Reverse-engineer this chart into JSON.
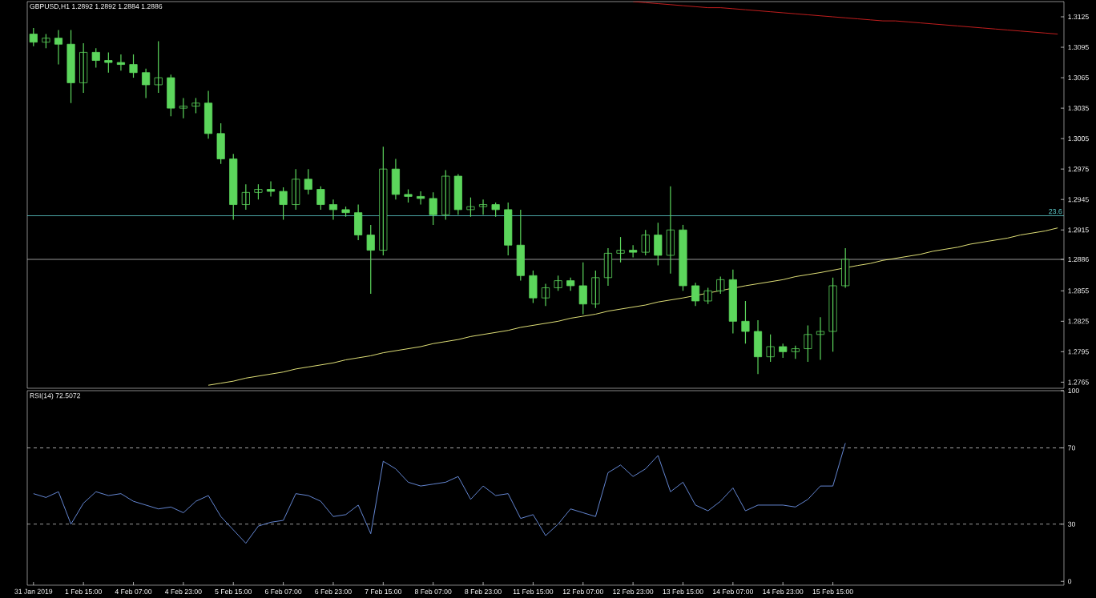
{
  "chart_data": [
    {
      "type": "candlestick",
      "title": "GBPUSD,H1  1.2892 1.2892 1.2884 1.2886",
      "color": "#5cd65c",
      "categories": [
        null,
        null,
        null,
        null,
        null,
        null,
        null,
        null,
        null,
        null,
        null,
        null,
        null,
        null,
        null,
        null,
        null,
        null,
        null,
        null,
        null,
        null,
        null,
        null,
        null,
        null,
        null,
        null,
        null,
        null,
        null,
        null,
        null,
        null,
        null,
        null,
        null,
        null,
        null,
        null,
        null,
        null,
        null,
        null,
        null,
        null,
        null,
        null,
        null,
        null,
        null,
        null,
        null,
        null,
        null,
        null,
        null,
        null,
        null,
        null,
        null,
        null,
        null,
        null,
        null,
        null,
        null,
        null,
        null,
        null,
        null,
        null,
        null,
        null,
        null,
        null,
        null,
        null,
        null,
        null,
        null,
        null,
        null
      ],
      "ohlc": [
        [
          1.3108,
          1.3114,
          1.3096,
          1.31
        ],
        [
          1.31,
          1.3108,
          1.3094,
          1.3104
        ],
        [
          1.3104,
          1.3112,
          1.3078,
          1.3098
        ],
        [
          1.3098,
          1.3112,
          1.304,
          1.306
        ],
        [
          1.306,
          1.3099,
          1.305,
          1.309
        ],
        [
          1.309,
          1.3094,
          1.3075,
          1.3082
        ],
        [
          1.3082,
          1.309,
          1.307,
          1.308
        ],
        [
          1.308,
          1.3088,
          1.3072,
          1.3078
        ],
        [
          1.3078,
          1.3088,
          1.3065,
          1.307
        ],
        [
          1.307,
          1.3074,
          1.3045,
          1.3058
        ],
        [
          1.3058,
          1.3101,
          1.305,
          1.3065
        ],
        [
          1.3065,
          1.3068,
          1.3027,
          1.3035
        ],
        [
          1.3035,
          1.3045,
          1.3025,
          1.3037
        ],
        [
          1.3037,
          1.3045,
          1.303,
          1.304
        ],
        [
          1.304,
          1.3052,
          1.3005,
          1.301
        ],
        [
          1.301,
          1.302,
          1.298,
          1.2985
        ],
        [
          1.2985,
          1.299,
          1.2925,
          1.294
        ],
        [
          1.294,
          1.296,
          1.2935,
          1.2952
        ],
        [
          1.2952,
          1.296,
          1.2945,
          1.2955
        ],
        [
          1.2955,
          1.2963,
          1.2948,
          1.2953
        ],
        [
          1.2953,
          1.2957,
          1.2925,
          1.294
        ],
        [
          1.294,
          1.2975,
          1.2935,
          1.2965
        ],
        [
          1.2965,
          1.2975,
          1.295,
          1.2955
        ],
        [
          1.2955,
          1.2958,
          1.2935,
          1.294
        ],
        [
          1.294,
          1.2945,
          1.2925,
          1.2935
        ],
        [
          1.2935,
          1.2938,
          1.2928,
          1.2932
        ],
        [
          1.2932,
          1.294,
          1.2905,
          1.291
        ],
        [
          1.291,
          1.292,
          1.2852,
          1.2895
        ],
        [
          1.2895,
          1.2997,
          1.289,
          1.2975
        ],
        [
          1.2975,
          1.2985,
          1.2945,
          1.295
        ],
        [
          1.295,
          1.2955,
          1.2942,
          1.2948
        ],
        [
          1.2948,
          1.2953,
          1.294,
          1.2946
        ],
        [
          1.2946,
          1.2952,
          1.292,
          1.293
        ],
        [
          1.293,
          1.2974,
          1.2925,
          1.2968
        ],
        [
          1.2968,
          1.297,
          1.293,
          1.2935
        ],
        [
          1.2935,
          1.2947,
          1.2928,
          1.2938
        ],
        [
          1.2938,
          1.2945,
          1.293,
          1.294
        ],
        [
          1.294,
          1.2942,
          1.2928,
          1.2935
        ],
        [
          1.2935,
          1.2942,
          1.289,
          1.29
        ],
        [
          1.29,
          1.2935,
          1.2865,
          1.287
        ],
        [
          1.287,
          1.2875,
          1.2843,
          1.2848
        ],
        [
          1.2848,
          1.2862,
          1.284,
          1.2858
        ],
        [
          1.2858,
          1.287,
          1.2855,
          1.2865
        ],
        [
          1.2865,
          1.2868,
          1.2855,
          1.286
        ],
        [
          1.286,
          1.2883,
          1.2832,
          1.2842
        ],
        [
          1.2842,
          1.2875,
          1.2838,
          1.2868
        ],
        [
          1.2868,
          1.2897,
          1.286,
          1.2892
        ],
        [
          1.2892,
          1.2908,
          1.2883,
          1.2895
        ],
        [
          1.2895,
          1.29,
          1.2888,
          1.2893
        ],
        [
          1.2893,
          1.2915,
          1.289,
          1.291
        ],
        [
          1.291,
          1.2922,
          1.288,
          1.289
        ],
        [
          1.289,
          1.2958,
          1.2872,
          1.2915
        ],
        [
          1.2915,
          1.292,
          1.2855,
          1.286
        ],
        [
          1.286,
          1.2863,
          1.284,
          1.2845
        ],
        [
          1.2845,
          1.2858,
          1.2842,
          1.2855
        ],
        [
          1.2855,
          1.2869,
          1.2852,
          1.2866
        ],
        [
          1.2866,
          1.2876,
          1.2813,
          1.2825
        ],
        [
          1.2825,
          1.2845,
          1.2803,
          1.2815
        ],
        [
          1.2815,
          1.2826,
          1.2773,
          1.279
        ],
        [
          1.279,
          1.2812,
          1.2785,
          1.28
        ],
        [
          1.28,
          1.2803,
          1.2789,
          1.2795
        ],
        [
          1.2795,
          1.2801,
          1.2788,
          1.2798
        ],
        [
          1.2798,
          1.2821,
          1.2785,
          1.2812
        ],
        [
          1.2812,
          1.2829,
          1.2787,
          1.2815
        ],
        [
          1.2815,
          1.2868,
          1.2795,
          1.286
        ],
        [
          1.286,
          1.2897,
          1.2858,
          1.2886
        ],
        null,
        null,
        null,
        null,
        null,
        null,
        null,
        null,
        null,
        null,
        null,
        null,
        null,
        null,
        null,
        null,
        null
      ],
      "series": [
        {
          "type": "line",
          "color": "#f0f080",
          "values": [
            null,
            null,
            null,
            null,
            null,
            null,
            null,
            null,
            null,
            null,
            null,
            null,
            null,
            null,
            1.2762,
            1.2764,
            1.2766,
            1.2769,
            1.2771,
            1.2773,
            1.2775,
            1.2778,
            1.278,
            1.2782,
            1.2784,
            1.2787,
            1.2789,
            1.2791,
            1.2794,
            1.2796,
            1.2798,
            1.28,
            1.2803,
            1.2805,
            1.2807,
            1.281,
            1.2812,
            1.2814,
            1.2816,
            1.2819,
            1.2821,
            1.2823,
            1.2825,
            1.2828,
            1.283,
            1.2832,
            1.2835,
            1.2837,
            1.2839,
            1.2841,
            1.2844,
            1.2846,
            1.2848,
            null,
            null,
            null,
            null,
            1.286,
            1.2862,
            1.2864,
            1.2866,
            1.2869,
            1.2871,
            1.2873,
            null,
            null,
            1.288,
            1.2882,
            1.2885,
            1.2887,
            1.2889,
            1.2891,
            1.2894,
            1.2896,
            1.2898,
            1.2901,
            1.2903,
            1.2905,
            1.2907,
            1.291,
            1.2912,
            1.2914,
            1.2917
          ]
        },
        {
          "type": "line",
          "color": "#d02020",
          "values": [
            null,
            null,
            null,
            null,
            null,
            null,
            null,
            null,
            null,
            null,
            null,
            null,
            null,
            null,
            null,
            null,
            null,
            null,
            null,
            null,
            null,
            null,
            null,
            null,
            null,
            null,
            null,
            null,
            null,
            null,
            null,
            null,
            null,
            null,
            null,
            null,
            null,
            null,
            null,
            null,
            null,
            null,
            null,
            null,
            null,
            null,
            null,
            null,
            1.314,
            1.3139,
            1.3138,
            1.3137,
            1.3136,
            1.3135,
            1.3134,
            1.3134,
            1.3133,
            1.3132,
            1.3131,
            1.313,
            1.3129,
            1.3128,
            1.3127,
            1.3126,
            1.3125,
            1.3124,
            1.3123,
            1.3122,
            1.3121,
            1.3121,
            1.312,
            1.3119,
            1.3118,
            1.3117,
            1.3116,
            1.3115,
            1.3114,
            1.3113,
            1.3112,
            1.3111,
            1.311,
            1.3109,
            1.3108
          ]
        }
      ],
      "ref_lines": [
        {
          "axis": "y",
          "value": 1.2929,
          "color": "#5fd0d0"
        },
        {
          "axis": "y",
          "value": 1.2886,
          "color": "#c0c0c0"
        }
      ],
      "annotations": [
        {
          "text": "23.6",
          "y": 1.2929
        }
      ],
      "ylim": [
        1.2759,
        1.314
      ],
      "yticks": [
        1.2765,
        1.2795,
        1.2825,
        1.2855,
        {
          "value": 1.2886,
          "label": "1.2886"
        },
        1.2915,
        1.2945,
        1.2975,
        1.3005,
        1.3035,
        1.3065,
        1.3095,
        1.3125
      ],
      "tick_labels": "y"
    },
    {
      "type": "line",
      "title": "RSI(14) 72.5072",
      "color": "#6b8fe0",
      "categories": [
        "31 Jan 2019",
        null,
        null,
        null,
        "1 Feb 15:00",
        null,
        null,
        null,
        "4 Feb 07:00",
        null,
        null,
        null,
        "4 Feb 23:00",
        null,
        null,
        null,
        "5 Feb 15:00",
        null,
        null,
        null,
        "6 Feb 07:00",
        null,
        null,
        null,
        "6 Feb 23:00",
        null,
        null,
        null,
        "7 Feb 15:00",
        null,
        null,
        null,
        "8 Feb 07:00",
        null,
        null,
        null,
        "8 Feb 23:00",
        null,
        null,
        null,
        "11 Feb 15:00",
        null,
        null,
        null,
        "12 Feb 07:00",
        null,
        null,
        null,
        "12 Feb 23:00",
        null,
        null,
        null,
        "13 Feb 15:00",
        null,
        null,
        null,
        "14 Feb 07:00",
        null,
        null,
        null,
        "14 Feb 23:00",
        null,
        null,
        null,
        "15 Feb 15:00",
        null,
        null,
        null,
        null,
        null,
        null,
        null,
        null,
        null,
        null,
        null,
        null,
        null,
        null,
        null,
        null,
        null,
        null
      ],
      "values": [
        46,
        44,
        47,
        30,
        41,
        47,
        45,
        46,
        42,
        40,
        38,
        39,
        36,
        42,
        45,
        34,
        27,
        20,
        29,
        31,
        32,
        46,
        45,
        42,
        34,
        35,
        40,
        25,
        63,
        59,
        52,
        50,
        51,
        52,
        55,
        43,
        50,
        45,
        46,
        33,
        35,
        24,
        30,
        38,
        36,
        34,
        57,
        61,
        55,
        59,
        66,
        47,
        52,
        40,
        37,
        42,
        49,
        37,
        40,
        40,
        40,
        39,
        43,
        50,
        50,
        72.5,
        null,
        null,
        null,
        null,
        null,
        null,
        null,
        null,
        null,
        null,
        null,
        null,
        null,
        null,
        null,
        null,
        null
      ],
      "ref_lines": [
        {
          "axis": "y",
          "value": 70,
          "color": "#d0d0d0",
          "line_style": "dashed"
        },
        {
          "axis": "y",
          "value": 30,
          "color": "#d0d0d0",
          "line_style": "dashed"
        }
      ],
      "ylim": [
        -2,
        100
      ],
      "yticks": [
        0,
        30,
        70,
        100
      ]
    }
  ]
}
